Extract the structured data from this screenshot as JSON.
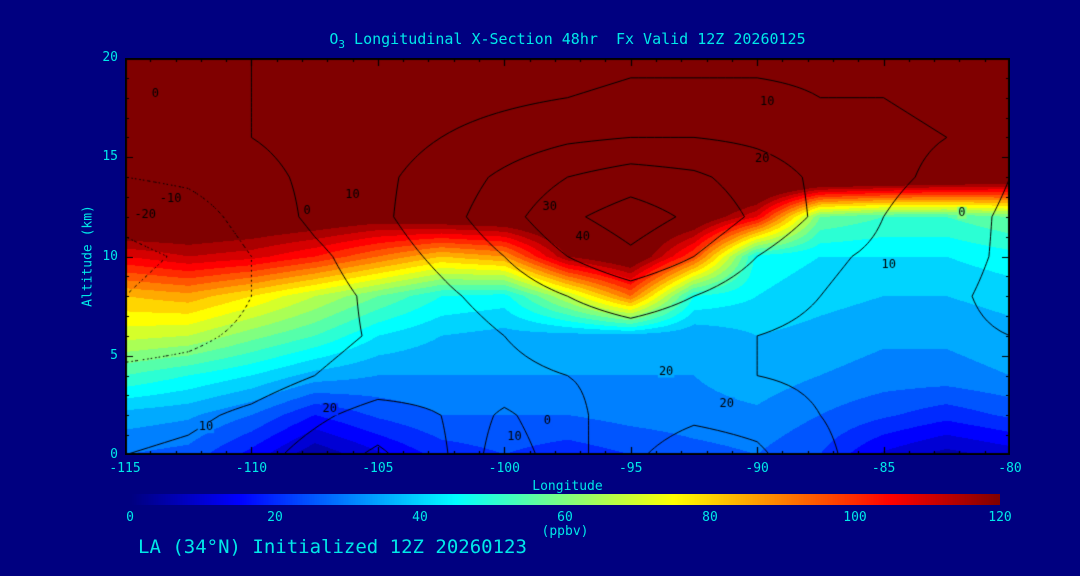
{
  "title": {
    "prefix": "O",
    "sub": "3",
    "rest": " Longitudinal X-Section 48hr  Fx Valid 12Z 20260125"
  },
  "footer": "LA (34°N) Initialized 12Z 20260123",
  "axes": {
    "x_label": "Longitude",
    "y_label": "Altitude (km)",
    "x_ticks": [
      -115,
      -110,
      -105,
      -100,
      -95,
      -90,
      -85,
      -80
    ],
    "y_ticks": [
      0,
      5,
      10,
      15,
      20
    ],
    "x_range": [
      -115,
      -80
    ],
    "y_range": [
      0,
      20
    ]
  },
  "colorbar": {
    "label": "(ppbv)",
    "ticks": [
      0,
      20,
      40,
      60,
      80,
      100,
      120
    ],
    "range": [
      0,
      120
    ]
  },
  "colors": {
    "background": "#000080",
    "text": "#00E8E8",
    "frame": "#000000",
    "contour": "#000000"
  },
  "chart_data": {
    "type": "heatmap",
    "title": "O3 Longitudinal X-Section 48hr Fx Valid 12Z 20260125",
    "xlabel": "Longitude",
    "ylabel": "Altitude (km)",
    "units": "ppbv",
    "colormap": "jet",
    "fill_range": [
      0,
      120
    ],
    "fill_step": 5,
    "x_lon": [
      -115,
      -112.5,
      -110,
      -107.5,
      -105,
      -102.5,
      -100,
      -97.5,
      -95,
      -92.5,
      -90,
      -87.5,
      -85,
      -82.5,
      -80
    ],
    "y_alt_km": [
      0,
      2,
      4,
      6,
      8,
      10,
      12,
      14,
      16,
      18,
      20
    ],
    "ozone_ppbv": [
      [
        30,
        28,
        18,
        6,
        14,
        22,
        25,
        22,
        25,
        28,
        30,
        25,
        14,
        8,
        12
      ],
      [
        38,
        36,
        30,
        20,
        26,
        30,
        30,
        30,
        32,
        33,
        34,
        30,
        26,
        22,
        26
      ],
      [
        55,
        50,
        45,
        38,
        35,
        35,
        35,
        35,
        35,
        35,
        38,
        35,
        33,
        33,
        35
      ],
      [
        72,
        70,
        62,
        55,
        45,
        40,
        38,
        38,
        38,
        36,
        40,
        38,
        36,
        36,
        38
      ],
      [
        85,
        88,
        80,
        70,
        60,
        50,
        48,
        70,
        95,
        50,
        45,
        42,
        40,
        40,
        42
      ],
      [
        110,
        115,
        112,
        105,
        95,
        85,
        90,
        120,
        130,
        100,
        48,
        45,
        45,
        45,
        48
      ],
      [
        135,
        132,
        130,
        128,
        125,
        128,
        130,
        135,
        135,
        130,
        110,
        60,
        55,
        55,
        60
      ],
      [
        145,
        145,
        145,
        145,
        145,
        145,
        145,
        148,
        148,
        145,
        142,
        140,
        138,
        135,
        132
      ],
      [
        150,
        150,
        150,
        150,
        150,
        150,
        152,
        152,
        152,
        150,
        150,
        148,
        145,
        142,
        140
      ],
      [
        155,
        155,
        155,
        155,
        155,
        155,
        155,
        155,
        155,
        155,
        155,
        152,
        150,
        150,
        148
      ],
      [
        160,
        160,
        160,
        160,
        160,
        160,
        160,
        160,
        160,
        160,
        160,
        158,
        155,
        155,
        152
      ]
    ],
    "overlay_contours": {
      "levels_solid": [
        0,
        10,
        20,
        30,
        40
      ],
      "levels_dotted": [
        -20,
        -10
      ],
      "values": [
        [
          0,
          2,
          6,
          14,
          22,
          12,
          -6,
          6,
          18,
          26,
          22,
          12,
          5,
          3,
          2
        ],
        [
          -4,
          -2,
          2,
          8,
          14,
          10,
          -2,
          8,
          14,
          18,
          16,
          10,
          6,
          4,
          3
        ],
        [
          -8,
          -7,
          -5,
          0,
          4,
          6,
          8,
          10,
          12,
          12,
          10,
          8,
          6,
          4,
          2
        ],
        [
          -14,
          -12,
          -8,
          -3,
          1,
          5,
          10,
          14,
          16,
          14,
          10,
          8,
          5,
          2,
          0
        ],
        [
          -20,
          -17,
          -10,
          -4,
          2,
          8,
          14,
          20,
          25,
          20,
          14,
          10,
          6,
          2,
          -3
        ],
        [
          -22,
          -19,
          -10,
          -2,
          5,
          12,
          20,
          30,
          38,
          30,
          20,
          12,
          8,
          4,
          -2
        ],
        [
          -18,
          -15,
          -6,
          2,
          8,
          16,
          26,
          38,
          45,
          38,
          28,
          18,
          10,
          5,
          -2
        ],
        [
          -10,
          -8,
          -3,
          2,
          8,
          14,
          22,
          30,
          35,
          32,
          25,
          18,
          12,
          8,
          0
        ],
        [
          -4,
          -3,
          0,
          3,
          6,
          10,
          14,
          18,
          20,
          20,
          18,
          15,
          12,
          10,
          6
        ],
        [
          -3,
          -2,
          0,
          2,
          4,
          6,
          8,
          10,
          12,
          12,
          12,
          10,
          10,
          8,
          6
        ],
        [
          -2,
          -2,
          0,
          0,
          2,
          3,
          5,
          6,
          8,
          8,
          8,
          8,
          8,
          6,
          5
        ]
      ],
      "labels": [
        {
          "text": "0",
          "lon": -113.8,
          "alt": 18.2
        },
        {
          "text": "-10",
          "lon": -113.2,
          "alt": 12.9
        },
        {
          "text": "-20",
          "lon": -114.2,
          "alt": 12.1
        },
        {
          "text": "0",
          "lon": -107.8,
          "alt": 12.3
        },
        {
          "text": "10",
          "lon": -106.0,
          "alt": 13.1
        },
        {
          "text": "30",
          "lon": -98.2,
          "alt": 12.5
        },
        {
          "text": "40",
          "lon": -96.9,
          "alt": 11.0
        },
        {
          "text": "20",
          "lon": -89.8,
          "alt": 14.9
        },
        {
          "text": "10",
          "lon": -89.6,
          "alt": 17.8
        },
        {
          "text": "20",
          "lon": -93.6,
          "alt": 4.2
        },
        {
          "text": "0",
          "lon": -98.3,
          "alt": 1.7
        },
        {
          "text": "10",
          "lon": -99.6,
          "alt": 0.9
        },
        {
          "text": "20",
          "lon": -91.2,
          "alt": 2.6
        },
        {
          "text": "10",
          "lon": -111.8,
          "alt": 1.4
        },
        {
          "text": "20",
          "lon": -106.9,
          "alt": 2.3
        },
        {
          "text": "0",
          "lon": -81.9,
          "alt": 12.2
        },
        {
          "text": "10",
          "lon": -84.8,
          "alt": 9.6
        }
      ]
    }
  }
}
